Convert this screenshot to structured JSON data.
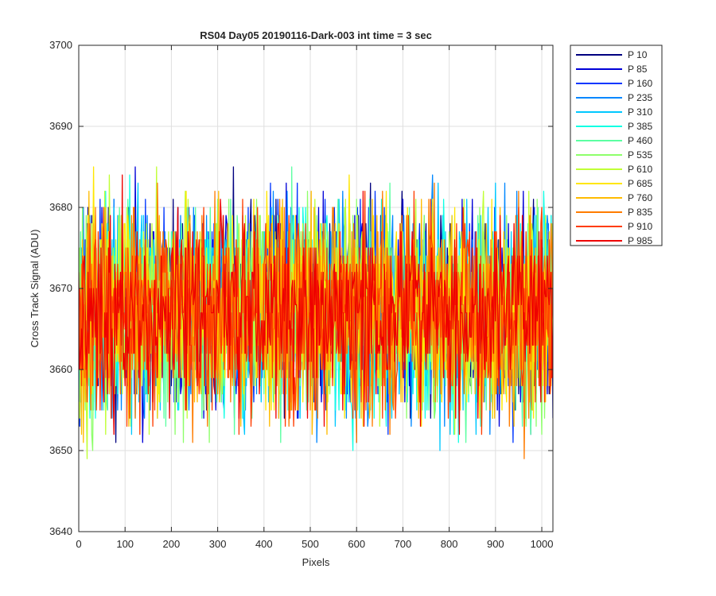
{
  "chart_data": {
    "type": "line",
    "title": "RS04 Day05 20190116-Dark-003 int time = 3 sec",
    "xlabel": "Pixels",
    "ylabel": "Cross Track Signal (ADU)",
    "xlim": [
      0,
      1024
    ],
    "ylim": [
      3640,
      3700
    ],
    "xticks": [
      0,
      100,
      200,
      300,
      400,
      500,
      600,
      700,
      800,
      900,
      1000
    ],
    "yticks": [
      3640,
      3650,
      3660,
      3670,
      3680,
      3690,
      3700
    ],
    "grid": true,
    "legend_location": "outside-right",
    "sample_step": 2,
    "series": [
      {
        "name": "P 10",
        "color": "#00007f",
        "base": 3667.5,
        "spread": 12,
        "seed": 11
      },
      {
        "name": "P 85",
        "color": "#0000d8",
        "base": 3667.4,
        "spread": 12,
        "seed": 23
      },
      {
        "name": "P 160",
        "color": "#0036ff",
        "base": 3667.4,
        "spread": 12,
        "seed": 37
      },
      {
        "name": "P 235",
        "color": "#0087ff",
        "base": 3667.3,
        "spread": 12,
        "seed": 41
      },
      {
        "name": "P 310",
        "color": "#00c8ff",
        "base": 3667.3,
        "spread": 12,
        "seed": 53
      },
      {
        "name": "P 385",
        "color": "#12ffe4",
        "base": 3667.3,
        "spread": 12,
        "seed": 67
      },
      {
        "name": "P 460",
        "color": "#5bffa2",
        "base": 3667.2,
        "spread": 12,
        "seed": 71
      },
      {
        "name": "P 535",
        "color": "#8dff6a",
        "base": 3667.2,
        "spread": 12,
        "seed": 83
      },
      {
        "name": "P 610",
        "color": "#c0ff36",
        "base": 3667.2,
        "spread": 12,
        "seed": 97
      },
      {
        "name": "P 685",
        "color": "#ffe600",
        "base": 3667.1,
        "spread": 12,
        "seed": 103
      },
      {
        "name": "P 760",
        "color": "#ffbb00",
        "base": 3667.1,
        "spread": 12,
        "seed": 113
      },
      {
        "name": "P 835",
        "color": "#ff7c00",
        "base": 3667.0,
        "spread": 12,
        "seed": 127
      },
      {
        "name": "P 910",
        "color": "#ff3c00",
        "base": 3667.0,
        "spread": 12,
        "seed": 131
      },
      {
        "name": "P 985",
        "color": "#ee0000",
        "base": 3667.0,
        "spread": 11,
        "seed": 149
      }
    ]
  }
}
